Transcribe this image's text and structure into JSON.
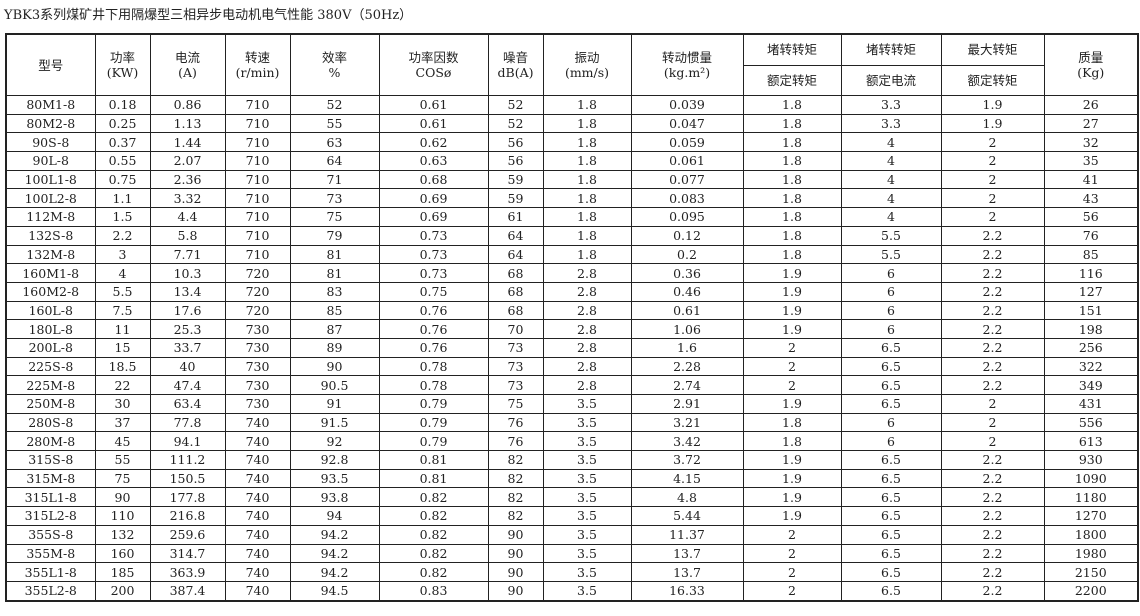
{
  "title": "YBK3系列煤矿井下用隔爆型三相异步电动机电气性能 380V（50Hz）",
  "headers": [
    {
      "l1": "型号",
      "l2": ""
    },
    {
      "l1": "功率",
      "l2": "(KW)"
    },
    {
      "l1": "电流",
      "l2": "(A)"
    },
    {
      "l1": "转速",
      "l2": "(r/min)"
    },
    {
      "l1": "效率",
      "l2": "%"
    },
    {
      "l1": "功率因数",
      "l2": "COSø"
    },
    {
      "l1": "噪音",
      "l2": "dB(A)"
    },
    {
      "l1": "振动",
      "l2": "(mm/s)"
    },
    {
      "l1": "转动惯量",
      "l2": "(kg.m²)"
    },
    {
      "l1": "堵转转矩",
      "l2": "额定转矩"
    },
    {
      "l1": "堵转转矩",
      "l2": "额定电流"
    },
    {
      "l1": "最大转矩",
      "l2": "额定转矩"
    },
    {
      "l1": "质量",
      "l2": "(Kg)"
    }
  ],
  "rows": [
    [
      "80M1-8",
      "0.18",
      "0.86",
      "710",
      "52",
      "0.61",
      "52",
      "1.8",
      "0.039",
      "1.8",
      "3.3",
      "1.9",
      "26"
    ],
    [
      "80M2-8",
      "0.25",
      "1.13",
      "710",
      "55",
      "0.61",
      "52",
      "1.8",
      "0.047",
      "1.8",
      "3.3",
      "1.9",
      "27"
    ],
    [
      "90S-8",
      "0.37",
      "1.44",
      "710",
      "63",
      "0.62",
      "56",
      "1.8",
      "0.059",
      "1.8",
      "4",
      "2",
      "32"
    ],
    [
      "90L-8",
      "0.55",
      "2.07",
      "710",
      "64",
      "0.63",
      "56",
      "1.8",
      "0.061",
      "1.8",
      "4",
      "2",
      "35"
    ],
    [
      "100L1-8",
      "0.75",
      "2.36",
      "710",
      "71",
      "0.68",
      "59",
      "1.8",
      "0.077",
      "1.8",
      "4",
      "2",
      "41"
    ],
    [
      "100L2-8",
      "1.1",
      "3.32",
      "710",
      "73",
      "0.69",
      "59",
      "1.8",
      "0.083",
      "1.8",
      "4",
      "2",
      "43"
    ],
    [
      "112M-8",
      "1.5",
      "4.4",
      "710",
      "75",
      "0.69",
      "61",
      "1.8",
      "0.095",
      "1.8",
      "4",
      "2",
      "56"
    ],
    [
      "132S-8",
      "2.2",
      "5.8",
      "710",
      "79",
      "0.73",
      "64",
      "1.8",
      "0.12",
      "1.8",
      "5.5",
      "2.2",
      "76"
    ],
    [
      "132M-8",
      "3",
      "7.71",
      "710",
      "81",
      "0.73",
      "64",
      "1.8",
      "0.2",
      "1.8",
      "5.5",
      "2.2",
      "85"
    ],
    [
      "160M1-8",
      "4",
      "10.3",
      "720",
      "81",
      "0.73",
      "68",
      "2.8",
      "0.36",
      "1.9",
      "6",
      "2.2",
      "116"
    ],
    [
      "160M2-8",
      "5.5",
      "13.4",
      "720",
      "83",
      "0.75",
      "68",
      "2.8",
      "0.46",
      "1.9",
      "6",
      "2.2",
      "127"
    ],
    [
      "160L-8",
      "7.5",
      "17.6",
      "720",
      "85",
      "0.76",
      "68",
      "2.8",
      "0.61",
      "1.9",
      "6",
      "2.2",
      "151"
    ],
    [
      "180L-8",
      "11",
      "25.3",
      "730",
      "87",
      "0.76",
      "70",
      "2.8",
      "1.06",
      "1.9",
      "6",
      "2.2",
      "198"
    ],
    [
      "200L-8",
      "15",
      "33.7",
      "730",
      "89",
      "0.76",
      "73",
      "2.8",
      "1.6",
      "2",
      "6.5",
      "2.2",
      "256"
    ],
    [
      "225S-8",
      "18.5",
      "40",
      "730",
      "90",
      "0.78",
      "73",
      "2.8",
      "2.28",
      "2",
      "6.5",
      "2.2",
      "322"
    ],
    [
      "225M-8",
      "22",
      "47.4",
      "730",
      "90.5",
      "0.78",
      "73",
      "2.8",
      "2.74",
      "2",
      "6.5",
      "2.2",
      "349"
    ],
    [
      "250M-8",
      "30",
      "63.4",
      "730",
      "91",
      "0.79",
      "75",
      "3.5",
      "2.91",
      "1.9",
      "6.5",
      "2",
      "431"
    ],
    [
      "280S-8",
      "37",
      "77.8",
      "740",
      "91.5",
      "0.79",
      "76",
      "3.5",
      "3.21",
      "1.8",
      "6",
      "2",
      "556"
    ],
    [
      "280M-8",
      "45",
      "94.1",
      "740",
      "92",
      "0.79",
      "76",
      "3.5",
      "3.42",
      "1.8",
      "6",
      "2",
      "613"
    ],
    [
      "315S-8",
      "55",
      "111.2",
      "740",
      "92.8",
      "0.81",
      "82",
      "3.5",
      "3.72",
      "1.9",
      "6.5",
      "2.2",
      "930"
    ],
    [
      "315M-8",
      "75",
      "150.5",
      "740",
      "93.5",
      "0.81",
      "82",
      "3.5",
      "4.15",
      "1.9",
      "6.5",
      "2.2",
      "1090"
    ],
    [
      "315L1-8",
      "90",
      "177.8",
      "740",
      "93.8",
      "0.82",
      "82",
      "3.5",
      "4.8",
      "1.9",
      "6.5",
      "2.2",
      "1180"
    ],
    [
      "315L2-8",
      "110",
      "216.8",
      "740",
      "94",
      "0.82",
      "82",
      "3.5",
      "5.44",
      "1.9",
      "6.5",
      "2.2",
      "1270"
    ],
    [
      "355S-8",
      "132",
      "259.6",
      "740",
      "94.2",
      "0.82",
      "90",
      "3.5",
      "11.37",
      "2",
      "6.5",
      "2.2",
      "1800"
    ],
    [
      "355M-8",
      "160",
      "314.7",
      "740",
      "94.2",
      "0.82",
      "90",
      "3.5",
      "13.7",
      "2",
      "6.5",
      "2.2",
      "1980"
    ],
    [
      "355L1-8",
      "185",
      "363.9",
      "740",
      "94.2",
      "0.82",
      "90",
      "3.5",
      "13.7",
      "2",
      "6.5",
      "2.2",
      "2150"
    ],
    [
      "355L2-8",
      "200",
      "387.4",
      "740",
      "94.5",
      "0.83",
      "90",
      "3.5",
      "16.33",
      "2",
      "6.5",
      "2.2",
      "2200"
    ]
  ]
}
